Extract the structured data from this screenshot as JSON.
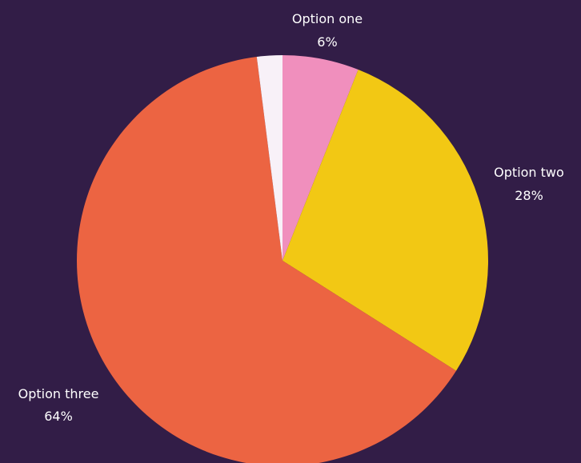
{
  "chart_data": {
    "type": "pie",
    "title": "",
    "slices": [
      {
        "label": "Option one",
        "value_label": "6%",
        "value": 6,
        "color": "#f08fbd"
      },
      {
        "label": "Option two",
        "value_label": "28%",
        "value": 28,
        "color": "#f2c814"
      },
      {
        "label": "Option three",
        "value_label": "64%",
        "value": 64,
        "color": "#ec6442"
      },
      {
        "label": "",
        "value_label": "",
        "value": 2,
        "color": "#f8f1f8"
      }
    ],
    "legend": "none",
    "background": "#321d47"
  }
}
